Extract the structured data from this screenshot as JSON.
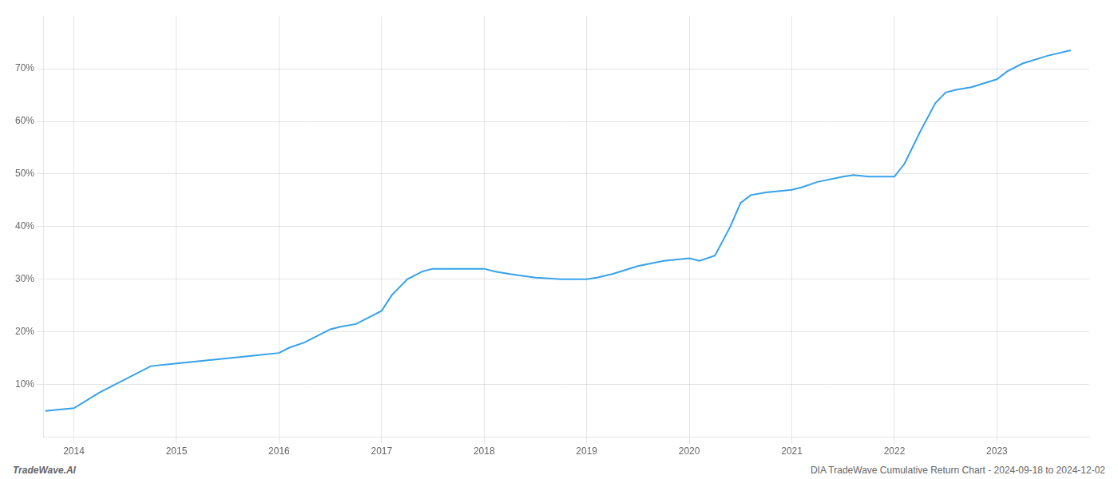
{
  "chart_data": {
    "type": "line",
    "annotations": [
      "TradeWave.AI",
      "DIA TradeWave Cumulative Return Chart - 2024-09-18 to 2024-12-02"
    ],
    "x": [
      2013.72,
      2014.0,
      2014.25,
      2014.5,
      2014.75,
      2015.0,
      2015.25,
      2015.5,
      2015.75,
      2016.0,
      2016.1,
      2016.25,
      2016.5,
      2016.6,
      2016.75,
      2017.0,
      2017.1,
      2017.25,
      2017.4,
      2017.5,
      2017.75,
      2018.0,
      2018.1,
      2018.25,
      2018.5,
      2018.6,
      2018.75,
      2019.0,
      2019.1,
      2019.25,
      2019.5,
      2019.75,
      2020.0,
      2020.1,
      2020.25,
      2020.4,
      2020.5,
      2020.6,
      2020.75,
      2021.0,
      2021.1,
      2021.25,
      2021.5,
      2021.6,
      2021.75,
      2022.0,
      2022.1,
      2022.25,
      2022.4,
      2022.5,
      2022.6,
      2022.75,
      2023.0,
      2023.1,
      2023.25,
      2023.5,
      2023.72
    ],
    "values": [
      5.0,
      5.5,
      8.5,
      11.0,
      13.5,
      14.0,
      14.5,
      15.0,
      15.5,
      16.0,
      17.0,
      18.0,
      20.5,
      21.0,
      21.5,
      24.0,
      27.0,
      30.0,
      31.5,
      32.0,
      32.0,
      32.0,
      31.5,
      31.0,
      30.3,
      30.2,
      30.0,
      30.0,
      30.3,
      31.0,
      32.5,
      33.5,
      34.0,
      33.5,
      34.5,
      40.0,
      44.5,
      46.0,
      46.5,
      47.0,
      47.5,
      48.5,
      49.5,
      49.8,
      49.5,
      49.5,
      52.0,
      58.0,
      63.5,
      65.5,
      66.0,
      66.5,
      68.0,
      69.5,
      71.0,
      72.5,
      73.5
    ],
    "xlim": [
      2013.7,
      2023.9
    ],
    "xticks": [
      2014,
      2015,
      2016,
      2017,
      2018,
      2019,
      2020,
      2021,
      2022,
      2023
    ],
    "ylim": [
      0,
      80
    ],
    "yticks": [
      {
        "value": 10,
        "label": "10%"
      },
      {
        "value": 20,
        "label": "20%"
      },
      {
        "value": 30,
        "label": "30%"
      },
      {
        "value": 40,
        "label": "40%"
      },
      {
        "value": 50,
        "label": "50%"
      },
      {
        "value": 60,
        "label": "60%"
      },
      {
        "value": 70,
        "label": "70%"
      }
    ],
    "grid": true
  }
}
